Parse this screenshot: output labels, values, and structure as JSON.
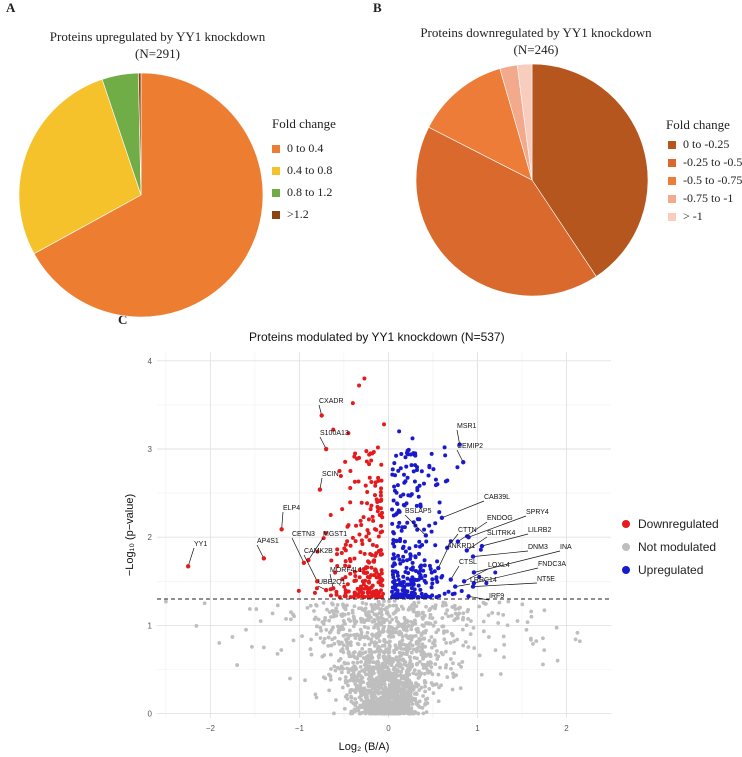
{
  "panels": {
    "a": "A",
    "b": "B",
    "c": "C"
  },
  "chart_data": [
    {
      "type": "pie",
      "title": "Proteins upregulated  by YY1 knockdown",
      "subtitle": "(N=291)",
      "legend_title": "Fold change",
      "labels": [
        "0 to 0.4",
        "0.4 to 0.8",
        "0.8 to 1.2",
        ">1.2"
      ],
      "values": [
        195,
        81,
        14,
        1
      ],
      "colors": [
        "#ED7D31",
        "#F5C22C",
        "#70AD47",
        "#8B4513"
      ]
    },
    {
      "type": "pie",
      "title": "Proteins downregulated  by YY1 knockdown",
      "subtitle": "(N=246)",
      "legend_title": "Fold change",
      "labels": [
        "0 to -0.25",
        "-0.25 to -0.5",
        "-0.5 to -0.75",
        "-0.75 to  -1",
        "> -1"
      ],
      "values": [
        100,
        103,
        32,
        6,
        5
      ],
      "colors": [
        "#B5561F",
        "#D9692C",
        "#EC7C37",
        "#F2A98C",
        "#F8CDBE"
      ]
    },
    {
      "type": "scatter",
      "title": "Proteins modulated by YY1 knockdown (N=537)",
      "xlabel": "Log₂ (B/A)",
      "ylabel": "−Log₁₀ (p−value)",
      "xlim": [
        -2.6,
        2.5
      ],
      "ylim": [
        -0.05,
        4.1
      ],
      "xticks": [
        -2,
        -1,
        0,
        1,
        2
      ],
      "yticks": [
        0,
        1,
        2,
        3,
        4
      ],
      "threshold": 1.3,
      "legend": [
        "Downregulated",
        "Not modulated",
        "Upregulated"
      ],
      "colors": {
        "down": "#E41A1C",
        "not": "#BEBEBE",
        "up": "#1A1ACD"
      },
      "labeled_points": [
        {
          "name": "YY1",
          "x": -2.25,
          "y": 1.67
        },
        {
          "name": "AP4S1",
          "x": -1.4,
          "y": 1.76
        },
        {
          "name": "ELP4",
          "x": -1.2,
          "y": 2.09
        },
        {
          "name": "CETN3",
          "x": -0.95,
          "y": 1.71
        },
        {
          "name": "MGST1",
          "x": -0.9,
          "y": 1.74
        },
        {
          "name": "CAMK2B",
          "x": -0.8,
          "y": 1.5
        },
        {
          "name": "MORF4L1",
          "x": -0.62,
          "y": 1.42
        },
        {
          "name": "UBE2Q1",
          "x": -0.7,
          "y": 1.4
        },
        {
          "name": "SCIN",
          "x": -0.77,
          "y": 2.54
        },
        {
          "name": "S100A13",
          "x": -0.7,
          "y": 3.0
        },
        {
          "name": "CXADR",
          "x": -0.75,
          "y": 3.38
        },
        {
          "name": "MSR1",
          "x": 0.8,
          "y": 3.05
        },
        {
          "name": "CEMIP2",
          "x": 0.84,
          "y": 2.85
        },
        {
          "name": "CAB39L",
          "x": 0.6,
          "y": 2.22
        },
        {
          "name": "SPRY4",
          "x": 0.9,
          "y": 2.0
        },
        {
          "name": "ENDOG",
          "x": 0.78,
          "y": 1.95
        },
        {
          "name": "LILRB2",
          "x": 1.05,
          "y": 1.9
        },
        {
          "name": "SLITRK4",
          "x": 0.88,
          "y": 1.85
        },
        {
          "name": "DNM3",
          "x": 0.95,
          "y": 1.78
        },
        {
          "name": "CTTN",
          "x": 0.66,
          "y": 1.88
        },
        {
          "name": "ANKRD1",
          "x": 0.56,
          "y": 1.65
        },
        {
          "name": "BSLAP5",
          "x": 0.42,
          "y": 2.02
        },
        {
          "name": "INA",
          "x": 0.96,
          "y": 1.6
        },
        {
          "name": "FNDC3A",
          "x": 0.96,
          "y": 1.48
        },
        {
          "name": "CTSL",
          "x": 0.7,
          "y": 1.52
        },
        {
          "name": "LOXL4",
          "x": 0.85,
          "y": 1.5
        },
        {
          "name": "LRRC14",
          "x": 0.75,
          "y": 1.44
        },
        {
          "name": "NT5E",
          "x": 0.95,
          "y": 1.44
        },
        {
          "name": "IRF9",
          "x": 0.9,
          "y": 1.33
        }
      ]
    }
  ]
}
